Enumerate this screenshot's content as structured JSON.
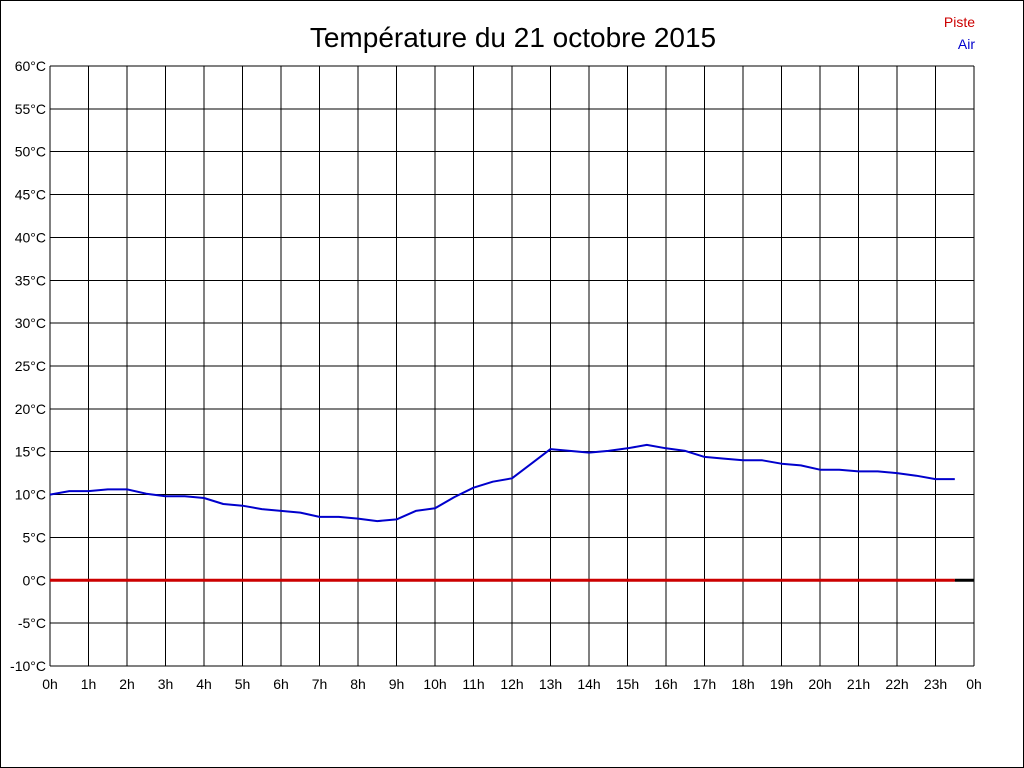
{
  "chart_data": {
    "type": "line",
    "title": "Température du 21 octobre 2015",
    "xlabel": "",
    "ylabel": "",
    "ylim": [
      -10,
      60
    ],
    "xlim": [
      0,
      24
    ],
    "y_ticks": [
      {
        "value": 60,
        "label": "60°C"
      },
      {
        "value": 55,
        "label": "55°C"
      },
      {
        "value": 50,
        "label": "50°C"
      },
      {
        "value": 45,
        "label": "45°C"
      },
      {
        "value": 40,
        "label": "40°C"
      },
      {
        "value": 35,
        "label": "35°C"
      },
      {
        "value": 30,
        "label": "30°C"
      },
      {
        "value": 25,
        "label": "25°C"
      },
      {
        "value": 20,
        "label": "20°C"
      },
      {
        "value": 15,
        "label": "15°C"
      },
      {
        "value": 10,
        "label": "10°C"
      },
      {
        "value": 5,
        "label": "5°C"
      },
      {
        "value": 0,
        "label": "0°C"
      },
      {
        "value": -5,
        "label": "-5°C"
      },
      {
        "value": -10,
        "label": "-10°C"
      }
    ],
    "x_ticks": [
      {
        "value": 0,
        "label": "0h"
      },
      {
        "value": 1,
        "label": "1h"
      },
      {
        "value": 2,
        "label": "2h"
      },
      {
        "value": 3,
        "label": "3h"
      },
      {
        "value": 4,
        "label": "4h"
      },
      {
        "value": 5,
        "label": "5h"
      },
      {
        "value": 6,
        "label": "6h"
      },
      {
        "value": 7,
        "label": "7h"
      },
      {
        "value": 8,
        "label": "8h"
      },
      {
        "value": 9,
        "label": "9h"
      },
      {
        "value": 10,
        "label": "10h"
      },
      {
        "value": 11,
        "label": "11h"
      },
      {
        "value": 12,
        "label": "12h"
      },
      {
        "value": 13,
        "label": "13h"
      },
      {
        "value": 14,
        "label": "14h"
      },
      {
        "value": 15,
        "label": "15h"
      },
      {
        "value": 16,
        "label": "16h"
      },
      {
        "value": 17,
        "label": "17h"
      },
      {
        "value": 18,
        "label": "18h"
      },
      {
        "value": 19,
        "label": "19h"
      },
      {
        "value": 20,
        "label": "20h"
      },
      {
        "value": 21,
        "label": "21h"
      },
      {
        "value": 22,
        "label": "22h"
      },
      {
        "value": 23,
        "label": "23h"
      },
      {
        "value": 24,
        "label": "0h"
      }
    ],
    "grid": true,
    "legend_position": "top-right",
    "series": [
      {
        "name": "Piste",
        "color": "#cc0000",
        "x": [
          0,
          23.5
        ],
        "y": [
          0,
          0
        ]
      },
      {
        "name": "Air",
        "color": "#0000cc",
        "x": [
          0,
          0.5,
          1,
          1.5,
          2,
          2.5,
          3,
          3.5,
          4,
          4.5,
          5,
          5.5,
          6,
          6.5,
          7,
          7.5,
          8,
          8.5,
          9,
          9.5,
          10,
          10.5,
          11,
          11.5,
          12,
          12.5,
          13,
          13.5,
          14,
          14.5,
          15,
          15.5,
          16,
          16.5,
          17,
          17.5,
          18,
          18.5,
          19,
          19.5,
          20,
          20.5,
          21,
          21.5,
          22,
          22.5,
          23,
          23.5
        ],
        "y": [
          10.0,
          10.4,
          10.4,
          10.6,
          10.6,
          10.1,
          9.8,
          9.8,
          9.6,
          8.9,
          8.7,
          8.3,
          8.1,
          7.9,
          7.4,
          7.4,
          7.2,
          6.9,
          7.1,
          8.1,
          8.4,
          9.7,
          10.8,
          11.5,
          11.9,
          13.6,
          15.3,
          15.1,
          14.9,
          15.1,
          15.4,
          15.8,
          15.4,
          15.1,
          14.4,
          14.2,
          14.0,
          14.0,
          13.6,
          13.4,
          12.9,
          12.9,
          12.7,
          12.7,
          12.5,
          12.2,
          11.8,
          11.8
        ]
      }
    ]
  }
}
